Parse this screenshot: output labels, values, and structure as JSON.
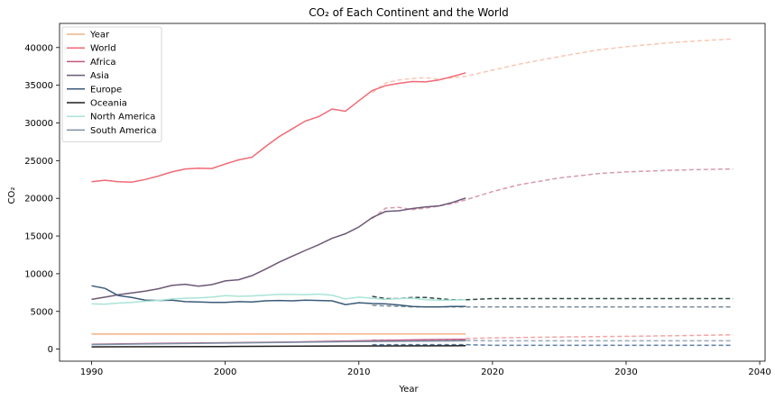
{
  "chart_data": {
    "type": "line",
    "title": "CO₂ of Each Continent and the World",
    "xlabel": "Year",
    "ylabel": "CO₂",
    "xlim": [
      1987.6,
      2040.4
    ],
    "ylim": [
      -1600,
      43200
    ],
    "xticks": [
      1990,
      2000,
      2010,
      2020,
      2030,
      2040
    ],
    "yticks": [
      0,
      5000,
      10000,
      15000,
      20000,
      25000,
      30000,
      35000,
      40000
    ],
    "grid": false,
    "legend": "upper-left",
    "series": [
      {
        "name": "Year",
        "color": "#f4b183",
        "x": [
          1990,
          2000,
          2010,
          2018
        ],
        "y": [
          1990,
          2000,
          2010,
          2018
        ]
      },
      {
        "name": "World",
        "color": "#f06a75",
        "x": [
          1990,
          1991,
          1992,
          1993,
          1994,
          1995,
          1996,
          1997,
          1998,
          1999,
          2000,
          2001,
          2002,
          2003,
          2004,
          2005,
          2006,
          2007,
          2008,
          2009,
          2010,
          2011,
          2012,
          2013,
          2014,
          2015,
          2016,
          2017,
          2018
        ],
        "y": [
          22200,
          22400,
          22200,
          22150,
          22500,
          22950,
          23500,
          23900,
          24000,
          23950,
          24550,
          25100,
          25450,
          26850,
          28150,
          29200,
          30250,
          30850,
          31850,
          31550,
          32950,
          34300,
          34950,
          35250,
          35500,
          35450,
          35700,
          36150,
          36650
        ]
      },
      {
        "name": "Africa",
        "color": "#c1587d",
        "x": [
          1990,
          1995,
          2000,
          2005,
          2010,
          2015,
          2018
        ],
        "y": [
          650,
          750,
          850,
          950,
          1100,
          1250,
          1300
        ]
      },
      {
        "name": "Asia",
        "color": "#6b5876",
        "x": [
          1990,
          1991,
          1992,
          1993,
          1994,
          1995,
          1996,
          1997,
          1998,
          1999,
          2000,
          2001,
          2002,
          2003,
          2004,
          2005,
          2006,
          2007,
          2008,
          2009,
          2010,
          2011,
          2012,
          2013,
          2014,
          2015,
          2016,
          2017,
          2018
        ],
        "y": [
          6600,
          6900,
          7200,
          7450,
          7700,
          8000,
          8450,
          8600,
          8350,
          8550,
          9050,
          9200,
          9750,
          10600,
          11500,
          12300,
          13100,
          13850,
          14700,
          15300,
          16200,
          17450,
          18250,
          18350,
          18650,
          18850,
          19000,
          19450,
          20050
        ]
      },
      {
        "name": "Europe",
        "color": "#3b5a78",
        "x": [
          1990,
          1991,
          1992,
          1993,
          1994,
          1995,
          1996,
          1997,
          1998,
          1999,
          2000,
          2001,
          2002,
          2003,
          2004,
          2005,
          2006,
          2007,
          2008,
          2009,
          2010,
          2011,
          2012,
          2013,
          2014,
          2015,
          2016,
          2017,
          2018
        ],
        "y": [
          8400,
          8050,
          7100,
          6850,
          6500,
          6450,
          6500,
          6300,
          6250,
          6200,
          6200,
          6300,
          6250,
          6400,
          6450,
          6400,
          6500,
          6450,
          6400,
          5900,
          6150,
          6050,
          6000,
          5850,
          5650,
          5600,
          5600,
          5650,
          5650
        ]
      },
      {
        "name": "Oceania",
        "color": "#1f1f1f",
        "x": [
          1990,
          2000,
          2010,
          2018
        ],
        "y": [
          300,
          350,
          420,
          450
        ]
      },
      {
        "name": "North America",
        "color": "#a9e4d7",
        "x": [
          1990,
          1991,
          1992,
          1993,
          1994,
          1995,
          1996,
          1997,
          1998,
          1999,
          2000,
          2001,
          2002,
          2003,
          2004,
          2005,
          2006,
          2007,
          2008,
          2009,
          2010,
          2011,
          2012,
          2013,
          2014,
          2015,
          2016,
          2017,
          2018
        ],
        "y": [
          6000,
          5950,
          6100,
          6200,
          6350,
          6450,
          6650,
          6750,
          6800,
          6900,
          7100,
          7000,
          7050,
          7150,
          7250,
          7250,
          7200,
          7300,
          7150,
          6650,
          6900,
          6750,
          6600,
          6700,
          6750,
          6550,
          6500,
          6500,
          6550
        ]
      },
      {
        "name": "South America",
        "color": "#7b8fa6",
        "x": [
          1990,
          2000,
          2010,
          2018
        ],
        "y": [
          600,
          800,
          1000,
          1100
        ]
      }
    ],
    "forecasts": [
      {
        "color": "#f9c7b4",
        "x": [
          2011,
          2012,
          2013,
          2014,
          2015,
          2016,
          2017,
          2018,
          2020,
          2022,
          2025,
          2028,
          2030,
          2033,
          2035,
          2038
        ],
        "y": [
          34000,
          35300,
          35700,
          35900,
          36000,
          35800,
          36000,
          36200,
          37000,
          37800,
          38800,
          39700,
          40100,
          40600,
          40850,
          41150
        ]
      },
      {
        "color": "#d89aae",
        "x": [
          2011,
          2012,
          2013,
          2014,
          2015,
          2016,
          2017,
          2018,
          2020,
          2022,
          2025,
          2028,
          2030,
          2033,
          2035,
          2038
        ],
        "y": [
          17300,
          18700,
          18800,
          18500,
          18700,
          19000,
          19300,
          19800,
          20900,
          21800,
          22700,
          23300,
          23500,
          23700,
          23800,
          23900
        ]
      },
      {
        "color": "#2f4a45",
        "x": [
          2011,
          2012,
          2013,
          2014,
          2015,
          2016,
          2017,
          2018,
          2020,
          2025,
          2030,
          2035,
          2038
        ],
        "y": [
          7000,
          6700,
          6700,
          6850,
          6850,
          6700,
          6550,
          6550,
          6700,
          6700,
          6700,
          6700,
          6700
        ]
      },
      {
        "color": "#7f8e9a",
        "x": [
          2011,
          2014,
          2018,
          2020,
          2025,
          2030,
          2035,
          2038
        ],
        "y": [
          5800,
          5600,
          5600,
          5600,
          5600,
          5600,
          5600,
          5600
        ]
      },
      {
        "color": "#f5a3a3",
        "x": [
          2018,
          2020,
          2025,
          2030,
          2035,
          2038
        ],
        "y": [
          1400,
          1500,
          1600,
          1700,
          1800,
          1900
        ]
      },
      {
        "color": "#5a7fa8",
        "x": [
          2011,
          2018,
          2020,
          2025,
          2030,
          2038
        ],
        "y": [
          600,
          600,
          500,
          500,
          500,
          500
        ]
      },
      {
        "color": "#9aa7b8",
        "x": [
          2011,
          2018,
          2020,
          2030,
          2038
        ],
        "y": [
          1200,
          1150,
          1100,
          1100,
          1100
        ]
      }
    ]
  }
}
